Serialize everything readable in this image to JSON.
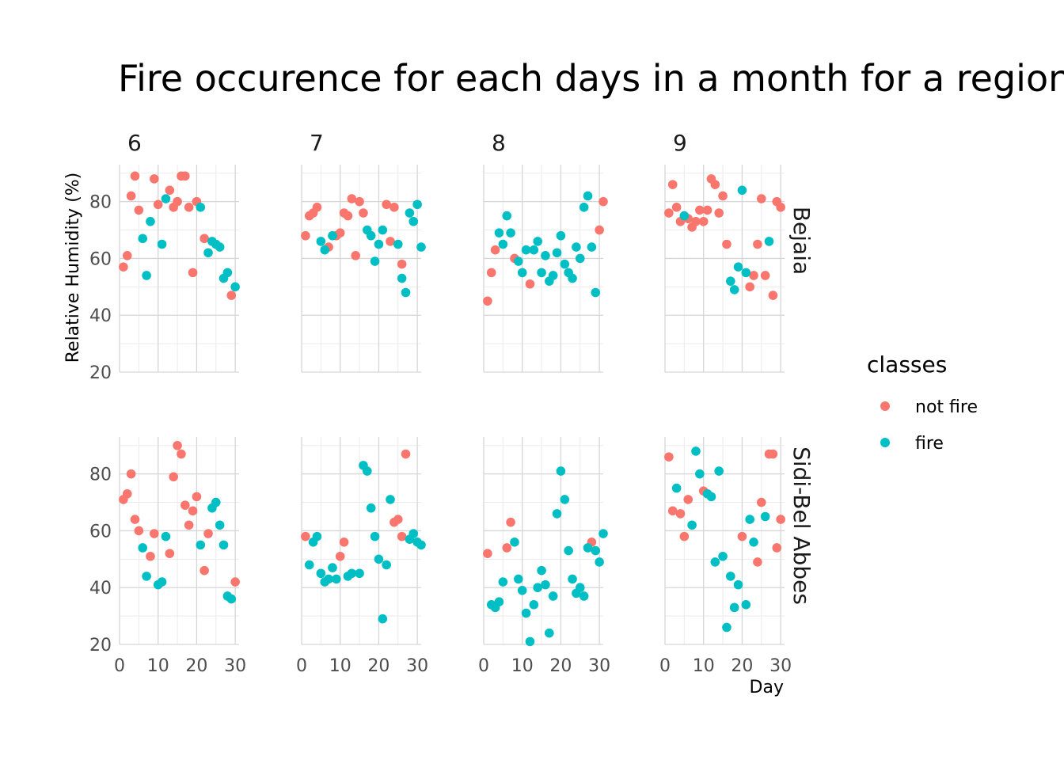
{
  "chart_data": {
    "type": "scatter",
    "title": "Fire occurence for each days in a month for a region",
    "xlabel": "Day",
    "ylabel": "Relative Humidity (%)",
    "xlim": [
      0,
      31
    ],
    "ylim": [
      20,
      93
    ],
    "x_ticks": [
      0,
      10,
      20,
      30
    ],
    "y_ticks": [
      20,
      40,
      60,
      80
    ],
    "grid": true,
    "legend": {
      "title": "classes",
      "placement": "right",
      "entries": [
        {
          "name": "not fire",
          "color": "#F8766D"
        },
        {
          "name": "fire",
          "color": "#00BFC4"
        }
      ]
    },
    "facet_cols": [
      "6",
      "7",
      "8",
      "9"
    ],
    "facet_rows": [
      "Bejaia",
      "Sidi-Bel Abbes"
    ],
    "panels": [
      {
        "row": "Bejaia",
        "col": "6",
        "not_fire": [
          [
            1,
            57
          ],
          [
            2,
            61
          ],
          [
            3,
            82
          ],
          [
            4,
            89
          ],
          [
            5,
            77
          ],
          [
            9,
            88
          ],
          [
            10,
            79
          ],
          [
            13,
            84
          ],
          [
            14,
            78
          ],
          [
            15,
            80
          ],
          [
            16,
            89
          ],
          [
            17,
            89
          ],
          [
            18,
            78
          ],
          [
            19,
            55
          ],
          [
            20,
            80
          ],
          [
            22,
            67
          ],
          [
            29,
            47
          ]
        ],
        "fire": [
          [
            6,
            67
          ],
          [
            7,
            54
          ],
          [
            8,
            73
          ],
          [
            11,
            65
          ],
          [
            12,
            81
          ],
          [
            21,
            78
          ],
          [
            23,
            62
          ],
          [
            24,
            66
          ],
          [
            25,
            65
          ],
          [
            26,
            64
          ],
          [
            27,
            53
          ],
          [
            28,
            55
          ],
          [
            30,
            50
          ]
        ]
      },
      {
        "row": "Bejaia",
        "col": "7",
        "not_fire": [
          [
            1,
            68
          ],
          [
            2,
            75
          ],
          [
            3,
            76
          ],
          [
            4,
            78
          ],
          [
            7,
            64
          ],
          [
            9,
            68
          ],
          [
            10,
            69
          ],
          [
            11,
            76
          ],
          [
            12,
            75
          ],
          [
            13,
            81
          ],
          [
            14,
            61
          ],
          [
            15,
            80
          ],
          [
            16,
            76
          ],
          [
            22,
            79
          ],
          [
            23,
            66
          ],
          [
            24,
            78
          ],
          [
            26,
            58
          ]
        ],
        "fire": [
          [
            5,
            66
          ],
          [
            6,
            63
          ],
          [
            8,
            68
          ],
          [
            17,
            70
          ],
          [
            18,
            68
          ],
          [
            19,
            59
          ],
          [
            20,
            65
          ],
          [
            21,
            70
          ],
          [
            25,
            65
          ],
          [
            26,
            53
          ],
          [
            27,
            48
          ],
          [
            28,
            76
          ],
          [
            29,
            73
          ],
          [
            30,
            79
          ],
          [
            31,
            64
          ]
        ]
      },
      {
        "row": "Bejaia",
        "col": "8",
        "not_fire": [
          [
            1,
            45
          ],
          [
            2,
            55
          ],
          [
            3,
            63
          ],
          [
            8,
            60
          ],
          [
            12,
            51
          ],
          [
            30,
            70
          ],
          [
            31,
            80
          ]
        ],
        "fire": [
          [
            4,
            69
          ],
          [
            5,
            65
          ],
          [
            6,
            75
          ],
          [
            7,
            69
          ],
          [
            9,
            59
          ],
          [
            10,
            55
          ],
          [
            11,
            63
          ],
          [
            13,
            63
          ],
          [
            14,
            66
          ],
          [
            15,
            55
          ],
          [
            16,
            61
          ],
          [
            17,
            52
          ],
          [
            18,
            54
          ],
          [
            19,
            62
          ],
          [
            20,
            68
          ],
          [
            21,
            58
          ],
          [
            22,
            55
          ],
          [
            23,
            53
          ],
          [
            24,
            64
          ],
          [
            25,
            60
          ],
          [
            26,
            78
          ],
          [
            27,
            82
          ],
          [
            28,
            64
          ],
          [
            29,
            48
          ]
        ]
      },
      {
        "row": "Bejaia",
        "col": "9",
        "not_fire": [
          [
            1,
            76
          ],
          [
            2,
            86
          ],
          [
            3,
            78
          ],
          [
            4,
            73
          ],
          [
            6,
            74
          ],
          [
            7,
            71
          ],
          [
            8,
            73
          ],
          [
            9,
            77
          ],
          [
            10,
            73
          ],
          [
            11,
            77
          ],
          [
            12,
            88
          ],
          [
            13,
            86
          ],
          [
            14,
            76
          ],
          [
            15,
            82
          ],
          [
            16,
            65
          ],
          [
            22,
            50
          ],
          [
            23,
            54
          ],
          [
            24,
            65
          ],
          [
            25,
            81
          ],
          [
            26,
            54
          ],
          [
            28,
            47
          ],
          [
            29,
            80
          ],
          [
            30,
            78
          ]
        ],
        "fire": [
          [
            5,
            75
          ],
          [
            17,
            52
          ],
          [
            18,
            49
          ],
          [
            19,
            57
          ],
          [
            20,
            84
          ],
          [
            21,
            55
          ],
          [
            27,
            66
          ]
        ]
      },
      {
        "row": "Sidi-Bel Abbes",
        "col": "6",
        "not_fire": [
          [
            1,
            71
          ],
          [
            2,
            73
          ],
          [
            3,
            80
          ],
          [
            4,
            64
          ],
          [
            5,
            60
          ],
          [
            8,
            51
          ],
          [
            9,
            59
          ],
          [
            13,
            52
          ],
          [
            14,
            79
          ],
          [
            15,
            90
          ],
          [
            16,
            87
          ],
          [
            17,
            69
          ],
          [
            18,
            62
          ],
          [
            19,
            67
          ],
          [
            20,
            72
          ],
          [
            22,
            46
          ],
          [
            23,
            59
          ],
          [
            30,
            42
          ]
        ],
        "fire": [
          [
            6,
            54
          ],
          [
            7,
            44
          ],
          [
            10,
            41
          ],
          [
            11,
            42
          ],
          [
            12,
            58
          ],
          [
            21,
            55
          ],
          [
            24,
            68
          ],
          [
            25,
            70
          ],
          [
            26,
            62
          ],
          [
            27,
            55
          ],
          [
            28,
            37
          ],
          [
            29,
            36
          ]
        ]
      },
      {
        "row": "Sidi-Bel Abbes",
        "col": "7",
        "not_fire": [
          [
            1,
            58
          ],
          [
            10,
            51
          ],
          [
            11,
            56
          ],
          [
            24,
            63
          ],
          [
            25,
            64
          ],
          [
            26,
            58
          ],
          [
            27,
            87
          ]
        ],
        "fire": [
          [
            2,
            48
          ],
          [
            3,
            56
          ],
          [
            4,
            58
          ],
          [
            5,
            45
          ],
          [
            6,
            42
          ],
          [
            7,
            43
          ],
          [
            8,
            47
          ],
          [
            9,
            43
          ],
          [
            12,
            44
          ],
          [
            13,
            45
          ],
          [
            15,
            45
          ],
          [
            16,
            83
          ],
          [
            17,
            81
          ],
          [
            18,
            68
          ],
          [
            19,
            58
          ],
          [
            20,
            50
          ],
          [
            21,
            29
          ],
          [
            22,
            48
          ],
          [
            23,
            71
          ],
          [
            28,
            57
          ],
          [
            29,
            59
          ],
          [
            30,
            56
          ],
          [
            31,
            55
          ]
        ]
      },
      {
        "row": "Sidi-Bel Abbes",
        "col": "8",
        "not_fire": [
          [
            1,
            52
          ],
          [
            6,
            54
          ],
          [
            7,
            63
          ],
          [
            28,
            56
          ]
        ],
        "fire": [
          [
            2,
            34
          ],
          [
            3,
            33
          ],
          [
            4,
            35
          ],
          [
            5,
            42
          ],
          [
            8,
            56
          ],
          [
            9,
            43
          ],
          [
            10,
            39
          ],
          [
            11,
            31
          ],
          [
            12,
            21
          ],
          [
            13,
            34
          ],
          [
            14,
            40
          ],
          [
            15,
            46
          ],
          [
            16,
            41
          ],
          [
            17,
            24
          ],
          [
            18,
            37
          ],
          [
            19,
            66
          ],
          [
            20,
            81
          ],
          [
            21,
            71
          ],
          [
            22,
            53
          ],
          [
            23,
            43
          ],
          [
            24,
            38
          ],
          [
            25,
            40
          ],
          [
            26,
            37
          ],
          [
            27,
            54
          ],
          [
            29,
            53
          ],
          [
            30,
            49
          ],
          [
            31,
            59
          ]
        ]
      },
      {
        "row": "Sidi-Bel Abbes",
        "col": "9",
        "not_fire": [
          [
            1,
            86
          ],
          [
            2,
            67
          ],
          [
            4,
            66
          ],
          [
            5,
            58
          ],
          [
            6,
            71
          ],
          [
            10,
            74
          ],
          [
            20,
            58
          ],
          [
            24,
            49
          ],
          [
            25,
            70
          ],
          [
            27,
            87
          ],
          [
            28,
            87
          ],
          [
            29,
            54
          ],
          [
            30,
            64
          ]
        ],
        "fire": [
          [
            3,
            75
          ],
          [
            7,
            62
          ],
          [
            8,
            88
          ],
          [
            9,
            80
          ],
          [
            11,
            73
          ],
          [
            12,
            72
          ],
          [
            13,
            49
          ],
          [
            14,
            81
          ],
          [
            15,
            51
          ],
          [
            16,
            26
          ],
          [
            17,
            44
          ],
          [
            18,
            33
          ],
          [
            19,
            41
          ],
          [
            21,
            34
          ],
          [
            22,
            64
          ],
          [
            23,
            56
          ],
          [
            26,
            65
          ]
        ]
      }
    ]
  }
}
